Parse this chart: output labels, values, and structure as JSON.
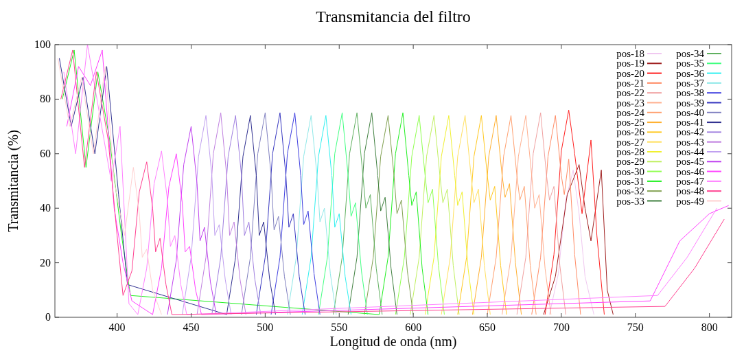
{
  "chart_data": {
    "type": "line",
    "title": "Transmitancia del filtro",
    "xlabel": "Longitud de onda (nm)",
    "ylabel": "Transmitancia (%)",
    "xlim": [
      358,
      815
    ],
    "xticks": [
      400,
      450,
      500,
      550,
      600,
      650,
      700,
      750,
      800
    ],
    "ylim": [
      0,
      100
    ],
    "yticks": [
      0,
      20,
      40,
      60,
      80,
      100
    ],
    "grid": false,
    "legend": "top right",
    "marker": "none",
    "line_style": "solid",
    "series": [
      {
        "name": "pos-18",
        "color": "#f0c8f0",
        "x": [
          692,
          698,
          703,
          708,
          712,
          716,
          722
        ],
        "values": [
          1,
          16,
          43,
          54,
          38,
          15,
          1
        ]
      },
      {
        "name": "pos-19",
        "color": "#a02020",
        "x": [
          688,
          696,
          704,
          712,
          716,
          720,
          727,
          731,
          735
        ],
        "values": [
          1,
          15,
          45,
          56,
          40,
          28,
          54,
          10,
          1
        ]
      },
      {
        "name": "pos-20",
        "color": "#ff2020",
        "x": [
          689,
          695,
          700,
          705,
          709,
          714,
          720,
          724,
          729
        ],
        "values": [
          1,
          23,
          61,
          76,
          60,
          38,
          65,
          30,
          1
        ]
      },
      {
        "name": "pos-21",
        "color": "#ff8c66",
        "x": [
          680,
          686,
          691,
          696,
          700,
          702,
          705,
          709,
          713
        ],
        "values": [
          1,
          22,
          59,
          74,
          52,
          45,
          58,
          23,
          1
        ]
      },
      {
        "name": "pos-22",
        "color": "#f0a0a0",
        "x": [
          670,
          676,
          681,
          686,
          690,
          692,
          695,
          699,
          703
        ],
        "values": [
          1,
          22,
          60,
          75,
          52,
          43,
          48,
          19,
          1
        ]
      },
      {
        "name": "pos-23",
        "color": "#ffb090",
        "x": [
          660,
          666,
          671,
          676,
          680,
          682,
          685,
          689,
          693
        ],
        "values": [
          1,
          22,
          59,
          74,
          52,
          40,
          45,
          18,
          1
        ]
      },
      {
        "name": "pos-24",
        "color": "#ffa070",
        "x": [
          650,
          656,
          661,
          666,
          670,
          672,
          675,
          679,
          683
        ],
        "values": [
          1,
          22,
          59,
          74,
          52,
          43,
          48,
          19,
          1
        ]
      },
      {
        "name": "pos-25",
        "color": "#ffb030",
        "x": [
          640,
          646,
          651,
          656,
          660,
          662,
          665,
          669,
          673
        ],
        "values": [
          1,
          22,
          59,
          74,
          52,
          44,
          49,
          20,
          1
        ]
      },
      {
        "name": "pos-26",
        "color": "#ffc820",
        "x": [
          630,
          636,
          641,
          646,
          650,
          652,
          655,
          659,
          663
        ],
        "values": [
          1,
          22,
          59,
          74,
          52,
          43,
          48,
          19,
          1
        ]
      },
      {
        "name": "pos-27",
        "color": "#ffe060",
        "x": [
          619,
          625,
          630,
          635,
          639,
          641,
          644,
          648,
          652
        ],
        "values": [
          1,
          22,
          59,
          74,
          52,
          42,
          47,
          19,
          1
        ]
      },
      {
        "name": "pos-28",
        "color": "#f0f030",
        "x": [
          608,
          614,
          619,
          624,
          628,
          630,
          633,
          637,
          641
        ],
        "values": [
          1,
          22,
          59,
          74,
          52,
          41,
          46,
          18,
          1
        ]
      },
      {
        "name": "pos-29",
        "color": "#c0f060",
        "x": [
          598,
          604,
          609,
          614,
          618,
          620,
          623,
          627,
          631
        ],
        "values": [
          1,
          22,
          59,
          74,
          52,
          42,
          47,
          19,
          1
        ]
      },
      {
        "name": "pos-30",
        "color": "#90ff50",
        "x": [
          588,
          594,
          599,
          604,
          608,
          610,
          613,
          617,
          621
        ],
        "values": [
          1,
          22,
          59,
          74,
          52,
          42,
          47,
          19,
          1
        ]
      },
      {
        "name": "pos-31",
        "color": "#20f020",
        "x": [
          363,
          371,
          379,
          387,
          395,
          403,
          409,
          577,
          583,
          588,
          593,
          597,
          599,
          602,
          606,
          610
        ],
        "values": [
          80,
          98,
          55,
          90,
          65,
          30,
          8,
          1,
          22,
          60,
          75,
          52,
          41,
          46,
          18,
          1
        ]
      },
      {
        "name": "pos-32",
        "color": "#80a050",
        "x": [
          567,
          573,
          578,
          583,
          587,
          589,
          592,
          596,
          600
        ],
        "values": [
          1,
          22,
          59,
          74,
          52,
          38,
          43,
          17,
          1
        ]
      },
      {
        "name": "pos-33",
        "color": "#408040",
        "x": [
          556,
          562,
          567,
          572,
          576,
          578,
          581,
          585,
          589
        ],
        "values": [
          1,
          22,
          60,
          75,
          52,
          39,
          44,
          18,
          1
        ]
      },
      {
        "name": "pos-34",
        "color": "#60b060",
        "x": [
          546,
          552,
          557,
          562,
          566,
          568,
          571,
          575,
          579
        ],
        "values": [
          1,
          22,
          60,
          75,
          52,
          40,
          45,
          18,
          1
        ]
      },
      {
        "name": "pos-35",
        "color": "#40ff80",
        "x": [
          536,
          542,
          547,
          552,
          556,
          558,
          561,
          565,
          569
        ],
        "values": [
          1,
          22,
          60,
          75,
          52,
          37,
          42,
          17,
          1
        ]
      },
      {
        "name": "pos-36",
        "color": "#30f0f0",
        "x": [
          525,
          531,
          536,
          541,
          545,
          547,
          550,
          554,
          558
        ],
        "values": [
          1,
          22,
          59,
          74,
          52,
          33,
          38,
          15,
          1
        ]
      },
      {
        "name": "pos-37",
        "color": "#90e8e8",
        "x": [
          515,
          521,
          526,
          531,
          535,
          537,
          540,
          544,
          548
        ],
        "values": [
          1,
          22,
          59,
          74,
          52,
          35,
          40,
          16,
          1
        ]
      },
      {
        "name": "pos-38",
        "color": "#4040e0",
        "x": [
          504,
          510,
          515,
          520,
          524,
          526,
          529,
          533,
          537
        ],
        "values": [
          1,
          22,
          60,
          75,
          52,
          34,
          39,
          16,
          1
        ]
      },
      {
        "name": "pos-39",
        "color": "#3838c0",
        "x": [
          494,
          500,
          505,
          510,
          514,
          516,
          519,
          523,
          527
        ],
        "values": [
          1,
          22,
          60,
          75,
          52,
          33,
          38,
          15,
          1
        ]
      },
      {
        "name": "pos-40",
        "color": "#8080c0",
        "x": [
          484,
          490,
          495,
          500,
          504,
          506,
          509,
          513,
          517
        ],
        "values": [
          1,
          22,
          60,
          75,
          52,
          32,
          37,
          15,
          1
        ]
      },
      {
        "name": "pos-41",
        "color": "#303090",
        "x": [
          361,
          369,
          377,
          385,
          393,
          401,
          407,
          474,
          480,
          485,
          490,
          494,
          496,
          499,
          503,
          507
        ],
        "values": [
          95,
          70,
          88,
          60,
          92,
          45,
          12,
          1,
          22,
          59,
          74,
          52,
          30,
          35,
          14,
          1
        ]
      },
      {
        "name": "pos-42",
        "color": "#a080e0",
        "x": [
          464,
          470,
          475,
          480,
          484,
          486,
          489,
          493,
          497
        ],
        "values": [
          1,
          22,
          59,
          74,
          52,
          30,
          35,
          14,
          1
        ]
      },
      {
        "name": "pos-43",
        "color": "#c080e0",
        "x": [
          454,
          460,
          465,
          470,
          474,
          476,
          479,
          483,
          487
        ],
        "values": [
          1,
          22,
          60,
          75,
          52,
          30,
          35,
          14,
          1
        ]
      },
      {
        "name": "pos-44",
        "color": "#c0a0f0",
        "x": [
          444,
          450,
          455,
          460,
          464,
          466,
          469,
          473,
          477
        ],
        "values": [
          1,
          22,
          59,
          74,
          52,
          30,
          34,
          14,
          1
        ]
      },
      {
        "name": "pos-45",
        "color": "#c040f0",
        "x": [
          434,
          440,
          445,
          450,
          454,
          456,
          459,
          463,
          467
        ],
        "values": [
          1,
          21,
          56,
          70,
          49,
          28,
          33,
          13,
          1
        ]
      },
      {
        "name": "pos-46",
        "color": "#ff40ff",
        "x": [
          366,
          374,
          382,
          390,
          398,
          404,
          410,
          424,
          430,
          435,
          440,
          444,
          446,
          449,
          453,
          457,
          760,
          780,
          800,
          813
        ],
        "values": [
          70,
          92,
          85,
          98,
          40,
          20,
          6,
          1,
          18,
          48,
          60,
          42,
          24,
          26,
          10,
          1,
          6,
          28,
          38,
          41
        ]
      },
      {
        "name": "pos-47",
        "color": "#ff80ff",
        "x": [
          364,
          372,
          380,
          388,
          396,
          402,
          408,
          414,
          420,
          425,
          430,
          434,
          436,
          439,
          443,
          447,
          765,
          785,
          805
        ],
        "values": [
          90,
          60,
          100,
          75,
          50,
          70,
          5,
          1,
          18,
          49,
          61,
          43,
          26,
          30,
          12,
          1,
          8,
          22,
          40
        ]
      },
      {
        "name": "pos-48",
        "color": "#ff4090",
        "x": [
          362,
          370,
          378,
          386,
          394,
          400,
          404,
          410,
          415,
          420,
          424,
          426,
          429,
          433,
          437,
          770,
          790,
          810
        ],
        "values": [
          80,
          98,
          55,
          90,
          65,
          30,
          8,
          17,
          46,
          57,
          40,
          24,
          29,
          12,
          1,
          4,
          18,
          36
        ]
      },
      {
        "name": "pos-49",
        "color": "#ffd0d0",
        "x": [
          360,
          368,
          376,
          384,
          392,
          398,
          405,
          411,
          415,
          417,
          420,
          424,
          430
        ],
        "values": [
          95,
          70,
          88,
          60,
          92,
          50,
          30,
          55,
          38,
          22,
          25,
          10,
          1
        ]
      }
    ]
  }
}
